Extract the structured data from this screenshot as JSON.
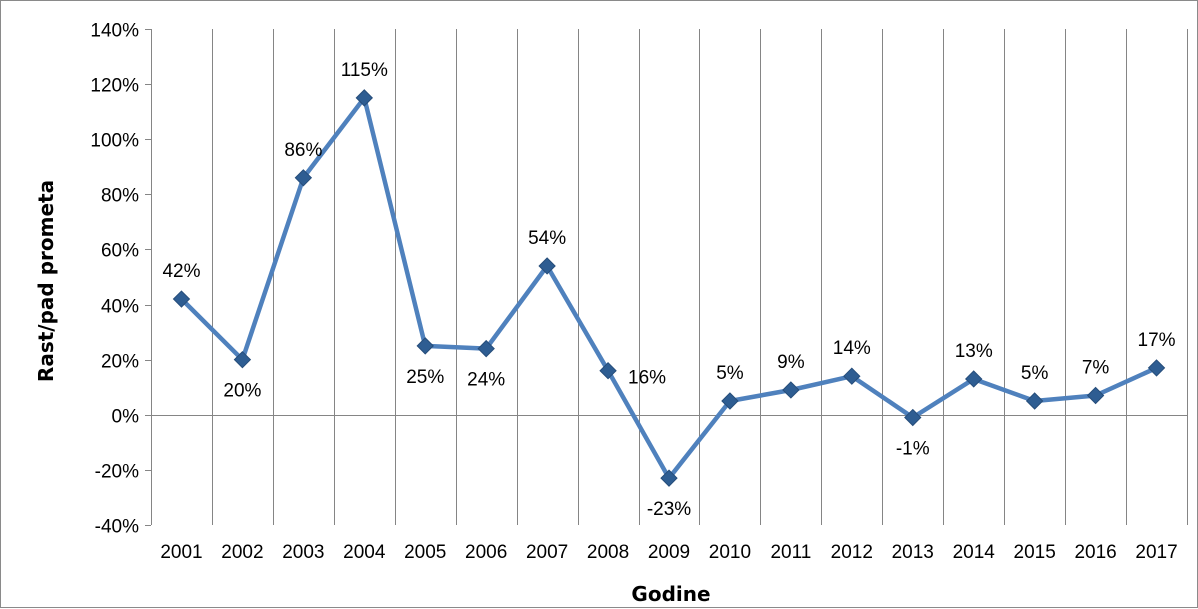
{
  "chart_data": {
    "type": "line",
    "title": "",
    "xlabel": "Godine",
    "ylabel": "Rast/pad prometa",
    "categories": [
      "2001",
      "2002",
      "2003",
      "2004",
      "2005",
      "2006",
      "2007",
      "2008",
      "2009",
      "2010",
      "2011",
      "2012",
      "2013",
      "2014",
      "2015",
      "2016",
      "2017"
    ],
    "series": [
      {
        "values": [
          42,
          20,
          86,
          115,
          25,
          24,
          54,
          16,
          -23,
          5,
          9,
          14,
          -1,
          13,
          5,
          7,
          17
        ],
        "data_labels": [
          "42%",
          "20%",
          "86%",
          "115%",
          "25%",
          "24%",
          "54%",
          "16%",
          "-23%",
          "5%",
          "9%",
          "14%",
          "-1%",
          "13%",
          "5%",
          "7%",
          "17%"
        ],
        "label_positions": [
          "above",
          "below",
          "above",
          "above",
          "below",
          "below",
          "above",
          "right",
          "below",
          "above",
          "above",
          "above",
          "below",
          "above",
          "above",
          "above",
          "above"
        ],
        "color": "#4f81bd",
        "marker_color": "#2e5d92",
        "marker": "diamond"
      }
    ],
    "ylim": [
      -40,
      140
    ],
    "y_ticks": [
      -40,
      -20,
      0,
      20,
      40,
      60,
      80,
      100,
      120,
      140
    ],
    "y_tick_labels": [
      "-40%",
      "-20%",
      "0%",
      "20%",
      "40%",
      "60%",
      "80%",
      "100%",
      "120%",
      "140%"
    ],
    "y_unit": "%",
    "grid": "vertical",
    "gridline_color": "#858585",
    "legend": "none"
  }
}
